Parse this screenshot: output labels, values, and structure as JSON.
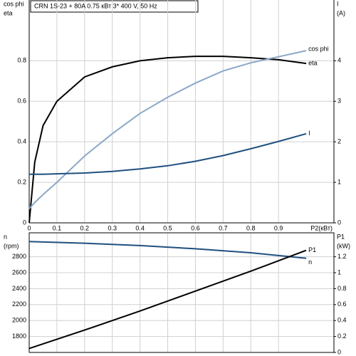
{
  "chart_data": [
    {
      "type": "line",
      "title": "CRN 1S-23 + 80A    0.75 кВт   3* 400 V, 50 Hz",
      "ylabel": [
        "cos phi",
        "eta"
      ],
      "y2label": [
        "I",
        "(A)"
      ],
      "xlabel": "P2(кВт)",
      "x": [
        0,
        0.02,
        0.05,
        0.1,
        0.2,
        0.3,
        0.4,
        0.5,
        0.6,
        0.7,
        0.8,
        0.9,
        1.0
      ],
      "xlim": [
        0,
        1.1
      ],
      "xticks": [
        0,
        0.1,
        0.2,
        0.3,
        0.4,
        0.5,
        0.6,
        0.7,
        0.8,
        0.9
      ],
      "ylim": [
        0,
        1.1
      ],
      "yticks": [
        0,
        0.2,
        0.4,
        0.6,
        0.8
      ],
      "y2lim": [
        0,
        5.5
      ],
      "y2ticks": [
        0,
        1,
        2,
        3,
        4
      ],
      "grid": true,
      "series": [
        {
          "name": "eta",
          "color": "#000000",
          "values": [
            0,
            0.3,
            0.48,
            0.6,
            0.72,
            0.77,
            0.8,
            0.815,
            0.822,
            0.822,
            0.815,
            0.805,
            0.787
          ]
        },
        {
          "name": "cos phi",
          "color": "#8aa8c8",
          "values": [
            0.07,
            0.1,
            0.14,
            0.2,
            0.33,
            0.44,
            0.54,
            0.62,
            0.69,
            0.75,
            0.79,
            0.82,
            0.85
          ]
        },
        {
          "name": "I",
          "color": "#1f5080",
          "axis": "y2",
          "values": [
            1.2,
            1.2,
            1.2,
            1.21,
            1.23,
            1.27,
            1.33,
            1.41,
            1.52,
            1.66,
            1.83,
            2.01,
            2.2
          ]
        }
      ]
    },
    {
      "type": "line",
      "ylabel": [
        "n",
        "(rpm)"
      ],
      "y2label": [
        "P1",
        "(kW)"
      ],
      "x": [
        0,
        0.2,
        0.4,
        0.6,
        0.8,
        1.0
      ],
      "xlim": [
        0,
        1.1
      ],
      "xticks": [
        0,
        0.1,
        0.2,
        0.3,
        0.4,
        0.5,
        0.6,
        0.7,
        0.8,
        0.9
      ],
      "ylim": [
        1600,
        3100
      ],
      "yticks": [
        1800,
        2000,
        2200,
        2400,
        2600,
        2800
      ],
      "y2lim": [
        0,
        1.5
      ],
      "y2ticks": [
        0,
        0.2,
        0.4,
        0.6,
        0.8,
        1,
        1.2
      ],
      "grid": true,
      "series": [
        {
          "name": "n",
          "color": "#1f5080",
          "values": [
            2990,
            2970,
            2940,
            2900,
            2850,
            2780
          ]
        },
        {
          "name": "P1",
          "color": "#000000",
          "axis": "y2",
          "values": [
            0.05,
            0.28,
            0.52,
            0.77,
            1.02,
            1.28
          ]
        }
      ]
    }
  ]
}
